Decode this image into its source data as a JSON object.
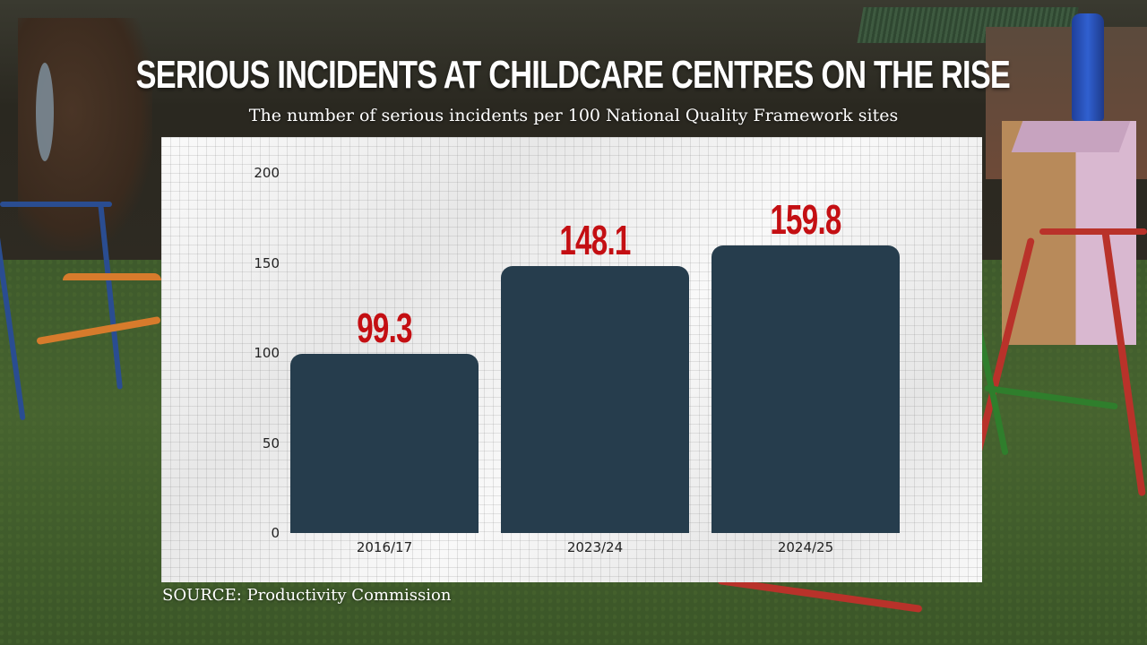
{
  "header": {
    "title": "SERIOUS INCIDENTS AT CHILDCARE CENTRES ON THE RISE",
    "subtitle": "The number of serious incidents per 100 National Quality Framework sites"
  },
  "footer": {
    "source": "SOURCE: Productivity Commission"
  },
  "colors": {
    "bar": "#263d4d",
    "value_label": "#c40f13",
    "title": "#ffffff",
    "panel": "#f3f3f3"
  },
  "chart_data": {
    "type": "bar",
    "title": "SERIOUS INCIDENTS AT CHILDCARE CENTRES ON THE RISE",
    "subtitle": "The number of serious incidents per 100 National Quality Framework sites",
    "categories": [
      "2016/17",
      "2023/24",
      "2024/25"
    ],
    "values": [
      99.3,
      148.1,
      159.8
    ],
    "value_labels": [
      "99.3",
      "148.1",
      "159.8"
    ],
    "xlabel": "",
    "ylabel": "",
    "ylim": [
      0,
      200
    ],
    "yticks": [
      "0",
      "50",
      "100",
      "150",
      "200"
    ],
    "grid": false,
    "legend": null,
    "source": "SOURCE: Productivity Commission"
  }
}
